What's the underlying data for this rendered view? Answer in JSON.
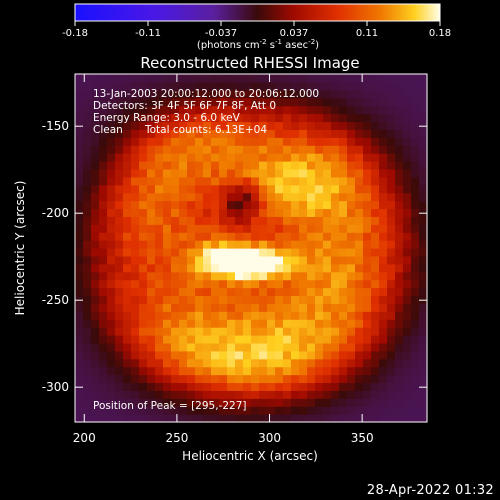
{
  "chart_data": {
    "type": "heatmap",
    "title": "Reconstructed RHESSI Image",
    "xlabel": "Heliocentric X (arcsec)",
    "ylabel": "Heliocentric Y (arcsec)",
    "xlim": [
      195,
      385
    ],
    "ylim": [
      -320,
      -120
    ],
    "x_ticks": [
      200,
      250,
      300,
      350
    ],
    "y_ticks": [
      -150,
      -200,
      -250,
      -300
    ],
    "colorbar": {
      "range": [
        -0.18,
        0.18
      ],
      "ticks": [
        "-0.18",
        "-0.11",
        "-0.037",
        "0.037",
        "0.11",
        "0.18"
      ],
      "units": "(photons cm",
      "units_exp1": "-2",
      "units_mid": " s",
      "units_exp2": "-1",
      "units_end": " asec",
      "units_exp3": "-2",
      "units_close": ")",
      "colormap": "red-temperature"
    },
    "annotations": {
      "time": "13-Jan-2003 20:00:12.000 to 20:06:12.000",
      "detectors": "Detectors: 3F 4F 5F 6F 7F 8F, Att 0",
      "energy": "Energy Range: 3.0 - 6.0 keV",
      "method": "Clean",
      "counts": "Total counts: 6.13E+04",
      "peak": "Position of Peak = [295,-227]"
    },
    "peak": {
      "x": 295,
      "y": -227,
      "value": 0.18
    },
    "background_value": -0.02,
    "regions": [
      {
        "x": 290,
        "y": -228,
        "sx": 16,
        "sy": 7,
        "amp": 0.15
      },
      {
        "x": 272,
        "y": -224,
        "sx": 14,
        "sy": 10,
        "amp": 0.07
      },
      {
        "x": 255,
        "y": -155,
        "sx": 30,
        "sy": 18,
        "amp": 0.08
      },
      {
        "x": 330,
        "y": -175,
        "sx": 28,
        "sy": 25,
        "amp": 0.07
      },
      {
        "x": 235,
        "y": -200,
        "sx": 20,
        "sy": 25,
        "amp": 0.07
      },
      {
        "x": 340,
        "y": -230,
        "sx": 22,
        "sy": 28,
        "amp": 0.075
      },
      {
        "x": 250,
        "y": -265,
        "sx": 28,
        "sy": 22,
        "amp": 0.07
      },
      {
        "x": 310,
        "y": -270,
        "sx": 30,
        "sy": 22,
        "amp": 0.075
      },
      {
        "x": 285,
        "y": -290,
        "sx": 35,
        "sy": 15,
        "amp": 0.06
      },
      {
        "x": 300,
        "y": -185,
        "sx": 25,
        "sy": 15,
        "amp": 0.06
      },
      {
        "x": 285,
        "y": -192,
        "sx": 8,
        "sy": 8,
        "amp": -0.09
      }
    ]
  },
  "footer": {
    "datetime": "28-Apr-2022 01:32"
  }
}
